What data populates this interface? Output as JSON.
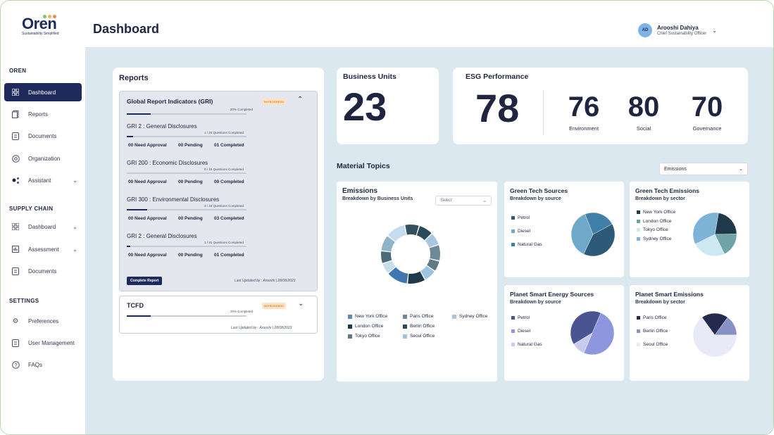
{
  "app": {
    "name": "Oren",
    "tagline": "Sustainability Simplified"
  },
  "sidebar": {
    "sections": [
      {
        "title": "OREN"
      },
      {
        "title": "SUPPLY CHAIN"
      },
      {
        "title": "SETTINGS"
      }
    ],
    "oren_items": [
      {
        "label": "Dashboard",
        "icon": "grid-icon"
      },
      {
        "label": "Reports",
        "icon": "reports-icon"
      },
      {
        "label": "Documents",
        "icon": "documents-icon"
      },
      {
        "label": "Organization",
        "icon": "organization-icon"
      },
      {
        "label": "Assistant",
        "icon": "assistant-icon"
      }
    ],
    "supply_items": [
      {
        "label": "Dashboard"
      },
      {
        "label": "Assessment"
      },
      {
        "label": "Documents"
      }
    ],
    "settings_items": [
      {
        "label": "Preferences"
      },
      {
        "label": "User Management"
      },
      {
        "label": "FAQs"
      }
    ]
  },
  "header": {
    "title": "Dashboard",
    "user": {
      "initials": "AD",
      "name": "Arooshi Dahiya",
      "role": "Chief Sustainability Officer"
    }
  },
  "reports": {
    "title": "Reports",
    "gri": {
      "title": "Global Report Indicators (GRI)",
      "badge": "IN PROGRESS",
      "progress_text": "20% Completed",
      "progress": 0.2,
      "sections": [
        {
          "title": "GRI 2 : General Disclosures",
          "questions": "1 / 20 Questions Completed",
          "progress": 0.05,
          "approval": "00 Need Approval",
          "pending": "00 Pending",
          "completed": "01 Completed"
        },
        {
          "title": "GRI 200 : Economic Disclosures",
          "questions": "0 / 15 Questions Completed",
          "progress": 0.0,
          "approval": "00 Need Approval",
          "pending": "00 Pending",
          "completed": "00 Completed"
        },
        {
          "title": "GRI 300 : Environmental Disclosures",
          "questions": "3 / 18 Questions Completed",
          "progress": 0.17,
          "approval": "00 Need Approval",
          "pending": "00 Pending",
          "completed": "03 Completed"
        },
        {
          "title": "GRI 2 : General Disclosures",
          "questions": "1 / 31 Questions Completed",
          "progress": 0.03,
          "approval": "00 Need Approval",
          "pending": "00 Pending",
          "completed": "01 Completed"
        }
      ],
      "button": "Complete Report",
      "updated": "Last Updated by : Arooshi | 28/08/2023"
    },
    "tcfd": {
      "title": "TCFD",
      "badge": "IN PROGRESS",
      "progress_text": "20% Completed",
      "progress": 0.2,
      "updated": "Last Updated by : Arooshi | 28/08/2023"
    }
  },
  "business_units": {
    "title": "Business Units",
    "value": "23"
  },
  "esg": {
    "title": "ESG Performance",
    "overall": "78",
    "environment": {
      "value": "76",
      "label": "Environment"
    },
    "social": {
      "value": "80",
      "label": "Social"
    },
    "governance": {
      "value": "70",
      "label": "Governance"
    }
  },
  "material_topics": {
    "title": "Material Topics",
    "dropdown": "Emissions"
  },
  "emissions": {
    "title": "Emissions",
    "subtitle": "Breakdown by Business Units",
    "select": "Select",
    "legend": [
      {
        "name": "New York Office",
        "color": "#5b8bb5"
      },
      {
        "name": "Paris Office",
        "color": "#6f8a94"
      },
      {
        "name": "Sydney Office",
        "color": "#a9c6de"
      },
      {
        "name": "London Office",
        "color": "#1e3a4a"
      },
      {
        "name": "Berlin Office",
        "color": "#2c4a5a"
      },
      {
        "name": "Tokyo Office",
        "color": "#5d7a86"
      },
      {
        "name": "Seoul Office",
        "color": "#9fc4df"
      }
    ]
  },
  "green_sources": {
    "title": "Green Tech Sources",
    "subtitle": "Breakdown by source",
    "legend": [
      {
        "name": "Petrol",
        "color": "#2e5a7a"
      },
      {
        "name": "Diesel",
        "color": "#6fa8c8"
      },
      {
        "name": "Natural Gas",
        "color": "#3f7fa8"
      }
    ]
  },
  "green_emissions": {
    "title": "Green Tech Emissions",
    "subtitle": "Breakdown by sector",
    "legend": [
      {
        "name": "New York Office",
        "color": "#1e3a4a"
      },
      {
        "name": "London Office",
        "color": "#6fa3a8"
      },
      {
        "name": "Tokyo Office",
        "color": "#cde8f0"
      },
      {
        "name": "Sydney Office",
        "color": "#7eb3d8"
      }
    ]
  },
  "planet_sources": {
    "title": "Planet Smart Energy Sources",
    "subtitle": "Breakdown by source",
    "legend": [
      {
        "name": "Petrol",
        "color": "#4a5490"
      },
      {
        "name": "Diesel",
        "color": "#8e97de"
      },
      {
        "name": "Natural Gas",
        "color": "#c7cbee"
      }
    ]
  },
  "planet_emissions": {
    "title": "Planet Smart Emissions",
    "subtitle": "Breakdown by sector",
    "legend": [
      {
        "name": "Paris Office",
        "color": "#24294f"
      },
      {
        "name": "Berlin Office",
        "color": "#8891c4"
      },
      {
        "name": "Seoul Office",
        "color": "#e8eaf8"
      }
    ]
  },
  "chart_data": [
    {
      "type": "pie",
      "title": "Emissions",
      "subtitle": "Breakdown by Business Units",
      "style": "donut",
      "values": [
        8,
        7,
        9,
        6,
        7,
        10,
        12,
        6,
        7,
        9,
        11,
        8
      ]
    },
    {
      "type": "pie",
      "title": "Green Tech Sources",
      "categories": [
        "Petrol",
        "Diesel",
        "Natural Gas"
      ],
      "values": [
        40,
        37,
        23
      ]
    },
    {
      "type": "pie",
      "title": "Green Tech Emissions",
      "categories": [
        "New York Office",
        "London Office",
        "Tokyo Office",
        "Sydney Office"
      ],
      "values": [
        22,
        18,
        25,
        35
      ]
    },
    {
      "type": "pie",
      "title": "Planet Smart Energy Sources",
      "categories": [
        "Petrol",
        "Diesel",
        "Natural Gas"
      ],
      "values": [
        40,
        50,
        10
      ]
    },
    {
      "type": "pie",
      "title": "Planet Smart Emissions",
      "categories": [
        "Paris Office",
        "Berlin Office",
        "Seoul Office"
      ],
      "values": [
        20,
        15,
        65
      ]
    }
  ]
}
